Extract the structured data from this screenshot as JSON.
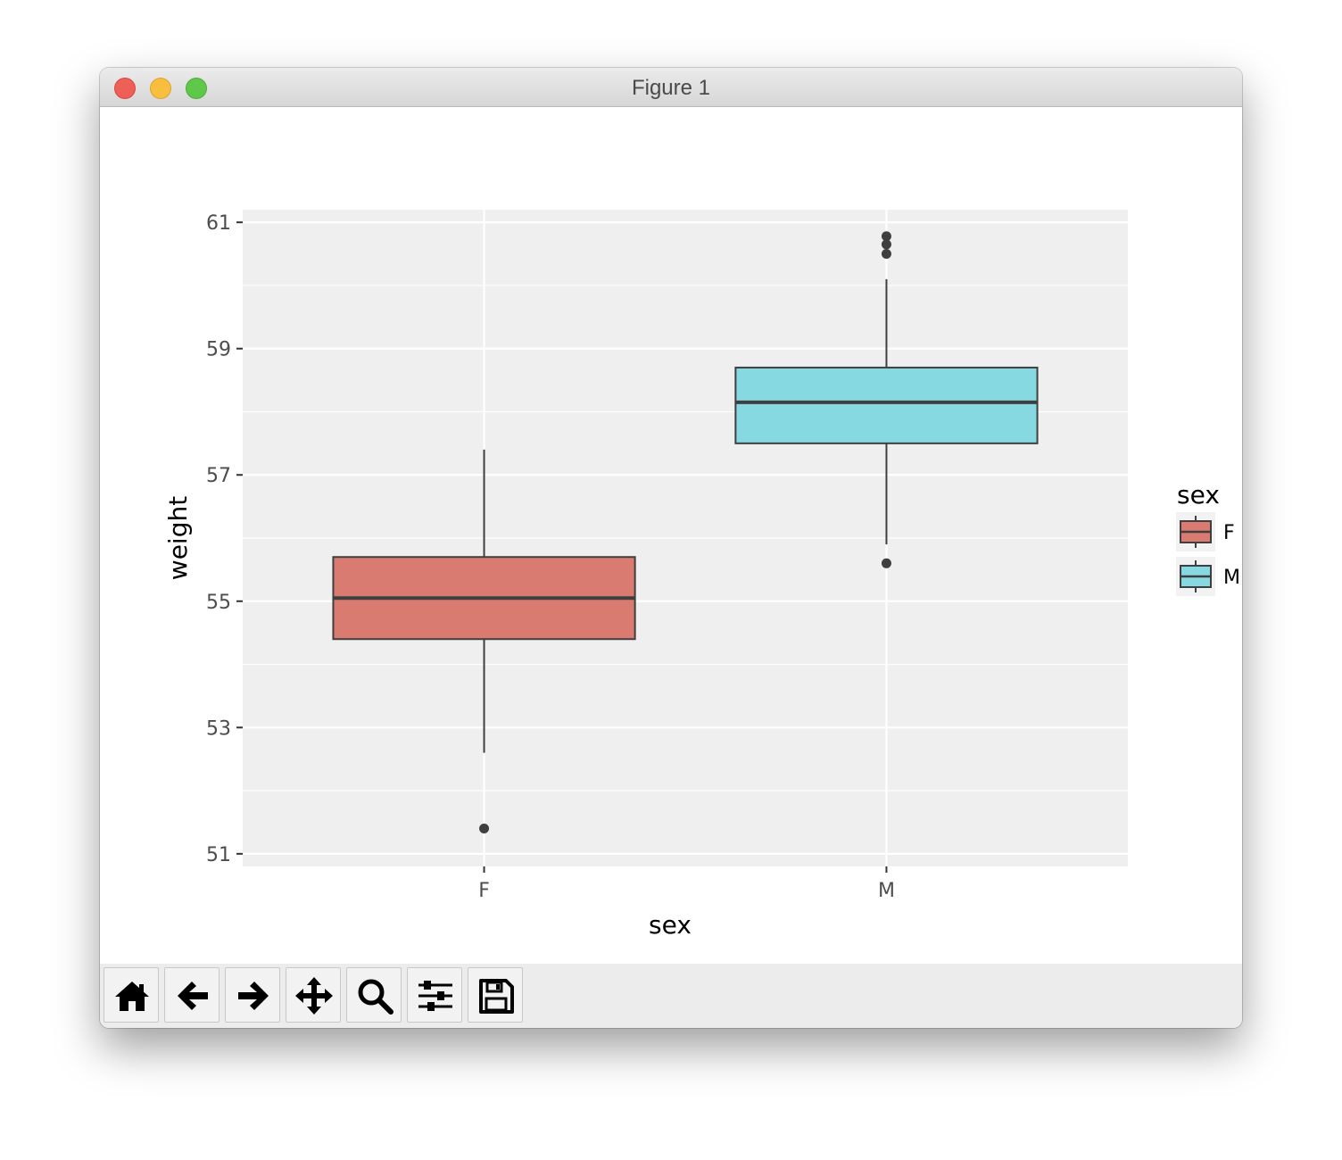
{
  "window": {
    "title": "Figure 1"
  },
  "toolbar": {
    "buttons": [
      {
        "name": "home-button",
        "icon": "home-icon"
      },
      {
        "name": "back-button",
        "icon": "arrow-left-icon"
      },
      {
        "name": "forward-button",
        "icon": "arrow-right-icon"
      },
      {
        "name": "pan-button",
        "icon": "move-icon"
      },
      {
        "name": "zoom-button",
        "icon": "magnifier-icon"
      },
      {
        "name": "configure-subplots-button",
        "icon": "sliders-icon"
      },
      {
        "name": "save-button",
        "icon": "floppy-disk-icon"
      }
    ]
  },
  "chart_data": {
    "type": "boxplot",
    "title": "",
    "xlabel": "sex",
    "ylabel": "weight",
    "categories": [
      "F",
      "M"
    ],
    "ylim": [
      50.8,
      61.2
    ],
    "yticks": [
      51,
      53,
      55,
      57,
      59,
      61
    ],
    "grid": true,
    "legend": {
      "title": "sex",
      "entries": [
        "F",
        "M"
      ],
      "placement": "right"
    },
    "colors": {
      "F": "#d97b70",
      "M": "#86d9e0",
      "panel": "#efefef",
      "edge": "#3f3f3f"
    },
    "boxes": [
      {
        "category": "F",
        "whisker_low": 52.6,
        "q1": 54.4,
        "median": 55.05,
        "q3": 55.7,
        "whisker_high": 57.4,
        "outliers": [
          51.4
        ]
      },
      {
        "category": "M",
        "whisker_low": 55.9,
        "q1": 57.5,
        "median": 58.15,
        "q3": 58.7,
        "whisker_high": 60.1,
        "outliers": [
          55.6,
          60.5,
          60.65,
          60.78
        ]
      }
    ]
  }
}
